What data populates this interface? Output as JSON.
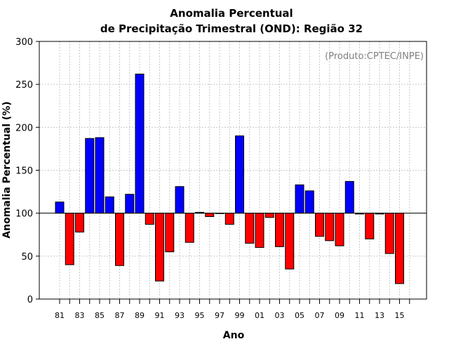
{
  "chart_data": {
    "type": "bar",
    "title_line1": "Anomalia Percentual",
    "title_line2": "de Precipitação Trimestral (OND): Região 32",
    "xlabel": "Ano",
    "ylabel": "Anomalia Percentual (%)",
    "credit": "(Produto:CPTEC/INPE)",
    "ylim": [
      0,
      300
    ],
    "yticks": [
      0,
      50,
      100,
      150,
      200,
      250,
      300
    ],
    "baseline": 100,
    "categories": [
      "81",
      "82",
      "83",
      "84",
      "85",
      "86",
      "87",
      "88",
      "89",
      "90",
      "91",
      "92",
      "93",
      "94",
      "95",
      "96",
      "97",
      "98",
      "99",
      "00",
      "01",
      "02",
      "03",
      "04",
      "05",
      "06",
      "07",
      "08",
      "09",
      "10",
      "11",
      "12",
      "13",
      "14",
      "15",
      "16"
    ],
    "xtick_labels": [
      "81",
      "83",
      "85",
      "87",
      "89",
      "91",
      "93",
      "95",
      "97",
      "99",
      "01",
      "03",
      "05",
      "07",
      "09",
      "11",
      "13",
      "15"
    ],
    "values": [
      113,
      40,
      78,
      187,
      188,
      119,
      39,
      122,
      262,
      87,
      21,
      55,
      131,
      66,
      101,
      96,
      100,
      87,
      190,
      65,
      60,
      95,
      61,
      35,
      133,
      126,
      73,
      68,
      62,
      137,
      99,
      70,
      99,
      53,
      18,
      null
    ],
    "colors": {
      "above": "#0000ff",
      "below": "#ff0000",
      "grid": "#c8c8c8"
    }
  }
}
